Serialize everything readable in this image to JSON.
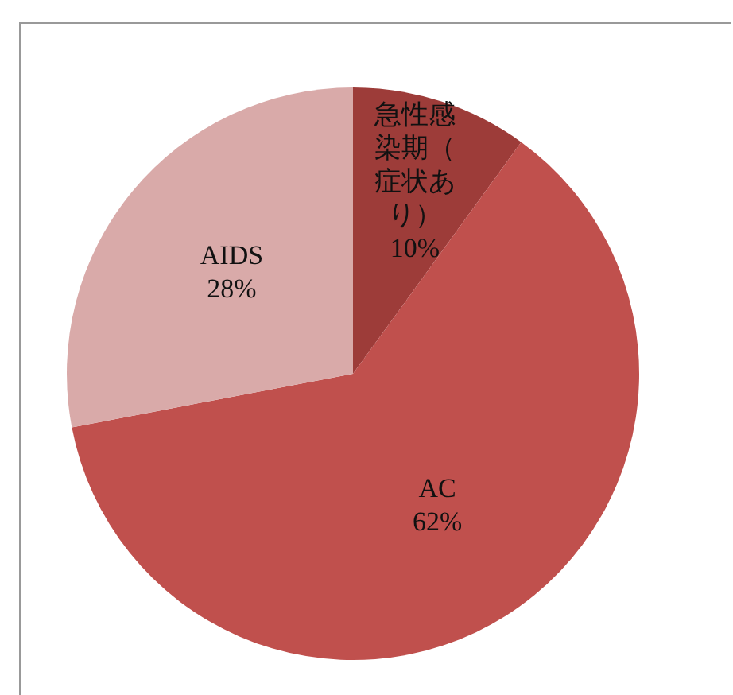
{
  "chart_data": {
    "type": "pie",
    "categories": [
      "急性感染期（症状あり）",
      "AC",
      "AIDS"
    ],
    "values": [
      10,
      62,
      28
    ],
    "colors": [
      "#9d3c39",
      "#c0504d",
      "#d9aaa9"
    ],
    "value_labels": [
      "10%",
      "62%",
      "28%"
    ],
    "legend": false
  }
}
